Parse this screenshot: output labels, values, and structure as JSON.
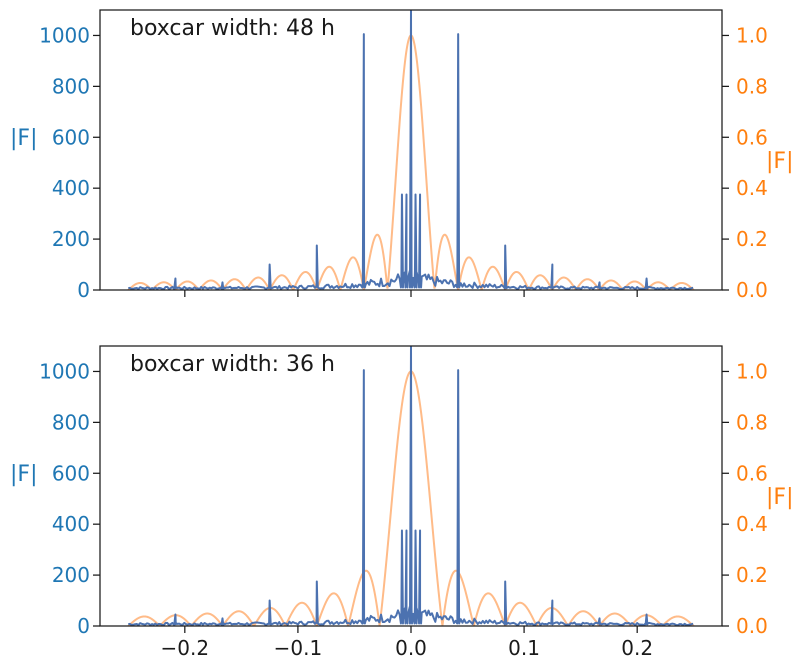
{
  "chart_data": [
    {
      "type": "line",
      "title": "boxcar width: 48 h",
      "xlabel": "",
      "ylabel_left": "|F|",
      "ylabel_right": "|F|",
      "xlim": [
        -0.275,
        0.275
      ],
      "ylim_left": [
        0,
        1100
      ],
      "ylim_right": [
        0,
        1.1
      ],
      "xticks": [
        -0.2,
        -0.1,
        0.0,
        0.1,
        0.2
      ],
      "xtick_labels": [],
      "yticks_left": [
        0,
        200,
        400,
        600,
        800,
        1000
      ],
      "yticks_right": [
        0.0,
        0.2,
        0.4,
        0.6,
        0.8,
        1.0
      ],
      "ytick_labels_left": [
        "0",
        "200",
        "400",
        "600",
        "800",
        "1000"
      ],
      "ytick_labels_right": [
        "0.0",
        "0.2",
        "0.4",
        "0.6",
        "0.8",
        "1.0"
      ],
      "grid": false,
      "boxcar_width_h": 48,
      "series": [
        {
          "axis": "left",
          "color": "#4c72b0",
          "x_range": [
            -0.25,
            0.25
          ],
          "baseline": 10,
          "peaks": [
            {
              "x": -0.2083,
              "y": 45
            },
            {
              "x": -0.1667,
              "y": 30
            },
            {
              "x": -0.125,
              "y": 100
            },
            {
              "x": -0.0833,
              "y": 175
            },
            {
              "x": -0.0417,
              "y": 1005
            },
            {
              "x": -0.008,
              "y": 375
            },
            {
              "x": -0.004,
              "y": 375
            },
            {
              "x": 0.0,
              "y": 1100
            },
            {
              "x": 0.004,
              "y": 375
            },
            {
              "x": 0.008,
              "y": 375
            },
            {
              "x": 0.0417,
              "y": 1005
            },
            {
              "x": 0.0833,
              "y": 175
            },
            {
              "x": 0.125,
              "y": 100
            },
            {
              "x": 0.1667,
              "y": 30
            },
            {
              "x": 0.2083,
              "y": 45
            }
          ]
        },
        {
          "axis": "right",
          "color": "#ffbb88",
          "x_range": [
            -0.25,
            0.25
          ],
          "formula": "abs(sinc(x * boxcar_width_h))",
          "peak": 1.0
        }
      ]
    },
    {
      "type": "line",
      "title": "boxcar width: 36 h",
      "xlabel": "",
      "ylabel_left": "|F|",
      "ylabel_right": "|F|",
      "xlim": [
        -0.275,
        0.275
      ],
      "ylim_left": [
        0,
        1100
      ],
      "ylim_right": [
        0,
        1.1
      ],
      "xticks": [
        -0.2,
        -0.1,
        0.0,
        0.1,
        0.2
      ],
      "xtick_labels": [
        "−0.2",
        "−0.1",
        "0.0",
        "0.1",
        "0.2"
      ],
      "yticks_left": [
        0,
        200,
        400,
        600,
        800,
        1000
      ],
      "yticks_right": [
        0.0,
        0.2,
        0.4,
        0.6,
        0.8,
        1.0
      ],
      "ytick_labels_left": [
        "0",
        "200",
        "400",
        "600",
        "800",
        "1000"
      ],
      "ytick_labels_right": [
        "0.0",
        "0.2",
        "0.4",
        "0.6",
        "0.8",
        "1.0"
      ],
      "grid": false,
      "boxcar_width_h": 36,
      "series": [
        {
          "axis": "left",
          "color": "#4c72b0",
          "x_range": [
            -0.25,
            0.25
          ],
          "baseline": 10,
          "peaks": [
            {
              "x": -0.2083,
              "y": 45
            },
            {
              "x": -0.1667,
              "y": 30
            },
            {
              "x": -0.125,
              "y": 100
            },
            {
              "x": -0.0833,
              "y": 175
            },
            {
              "x": -0.0417,
              "y": 1005
            },
            {
              "x": -0.008,
              "y": 375
            },
            {
              "x": -0.004,
              "y": 375
            },
            {
              "x": 0.0,
              "y": 1100
            },
            {
              "x": 0.004,
              "y": 375
            },
            {
              "x": 0.008,
              "y": 375
            },
            {
              "x": 0.0417,
              "y": 1005
            },
            {
              "x": 0.0833,
              "y": 175
            },
            {
              "x": 0.125,
              "y": 100
            },
            {
              "x": 0.1667,
              "y": 30
            },
            {
              "x": 0.2083,
              "y": 45
            }
          ]
        },
        {
          "axis": "right",
          "color": "#ffbb88",
          "x_range": [
            -0.25,
            0.25
          ],
          "formula": "abs(sinc(x * boxcar_width_h))",
          "peak": 1.0
        }
      ]
    }
  ]
}
